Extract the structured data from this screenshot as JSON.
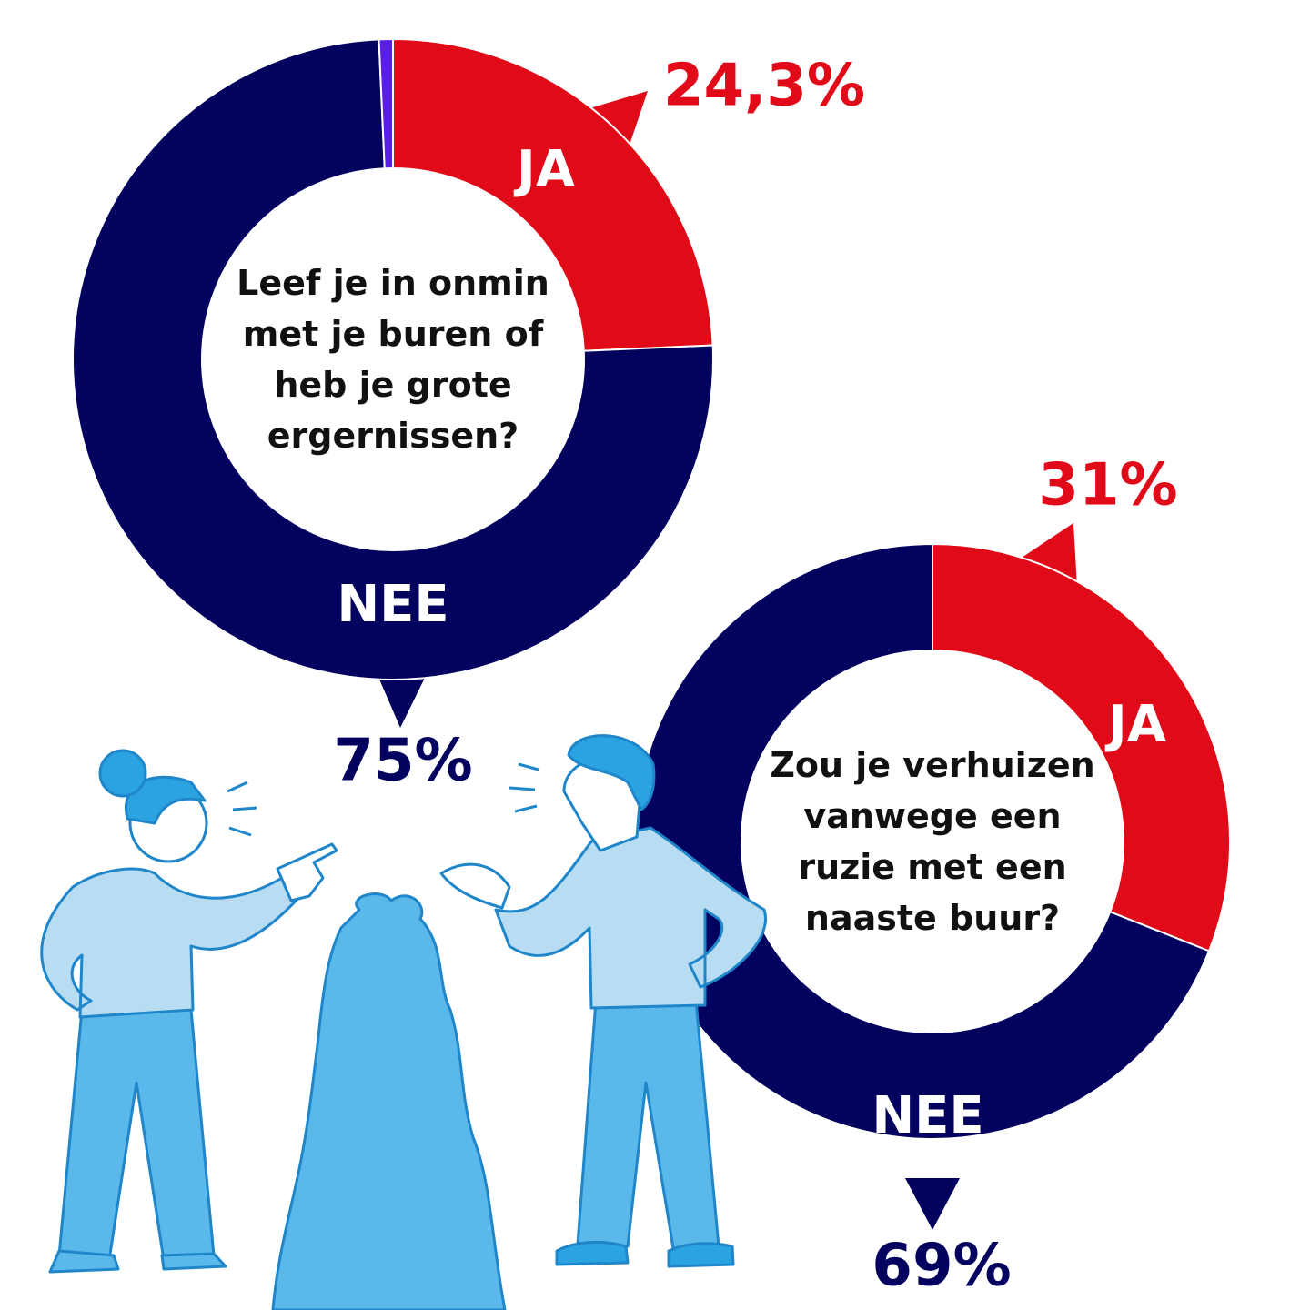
{
  "chart_data": [
    {
      "type": "donut",
      "title": "Leef je in onmin met je buren of heb je grote ergernissen?",
      "categories": [
        "JA",
        "NEE",
        null
      ],
      "values": [
        24.3,
        75,
        0.7
      ],
      "value_labels": [
        "24,3%",
        "75%",
        null
      ],
      "colors": [
        "#e00a18",
        "#03035f",
        "#5a1ee6"
      ]
    },
    {
      "type": "donut",
      "title": "Zou je verhuizen vanwege een ruzie met een naaste buur?",
      "categories": [
        "JA",
        "NEE"
      ],
      "values": [
        31,
        69
      ],
      "value_labels": [
        "31%",
        "69%"
      ],
      "colors": [
        "#e00a18",
        "#03035f"
      ]
    }
  ]
}
